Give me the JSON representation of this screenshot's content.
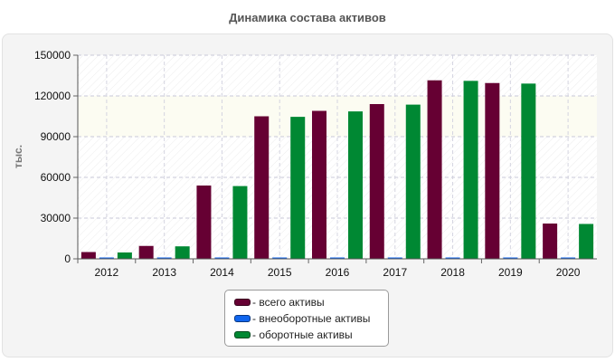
{
  "chart_data": {
    "type": "bar",
    "title": "Динамика состава активов",
    "ylabel": "тыс.",
    "xlabel": "",
    "categories": [
      "2012",
      "2013",
      "2014",
      "2015",
      "2016",
      "2017",
      "2018",
      "2019",
      "2020"
    ],
    "series": [
      {
        "name": "- всего активы",
        "color": "#660033",
        "values": [
          5000,
          9500,
          54000,
          105000,
          109000,
          114000,
          131500,
          129500,
          26000
        ]
      },
      {
        "name": "- внеоборотные активы",
        "color": "#1166ee",
        "values": [
          300,
          300,
          400,
          400,
          400,
          400,
          400,
          400,
          300
        ]
      },
      {
        "name": "- оборотные активы",
        "color": "#008833",
        "values": [
          4700,
          9200,
          53600,
          104600,
          108600,
          113600,
          131100,
          129100,
          25700
        ]
      }
    ],
    "ylim": [
      0,
      150000
    ],
    "yticks": [
      "0",
      "30000",
      "60000",
      "90000",
      "120000",
      "150000"
    ],
    "grid": true,
    "legend_position": "bottom"
  }
}
